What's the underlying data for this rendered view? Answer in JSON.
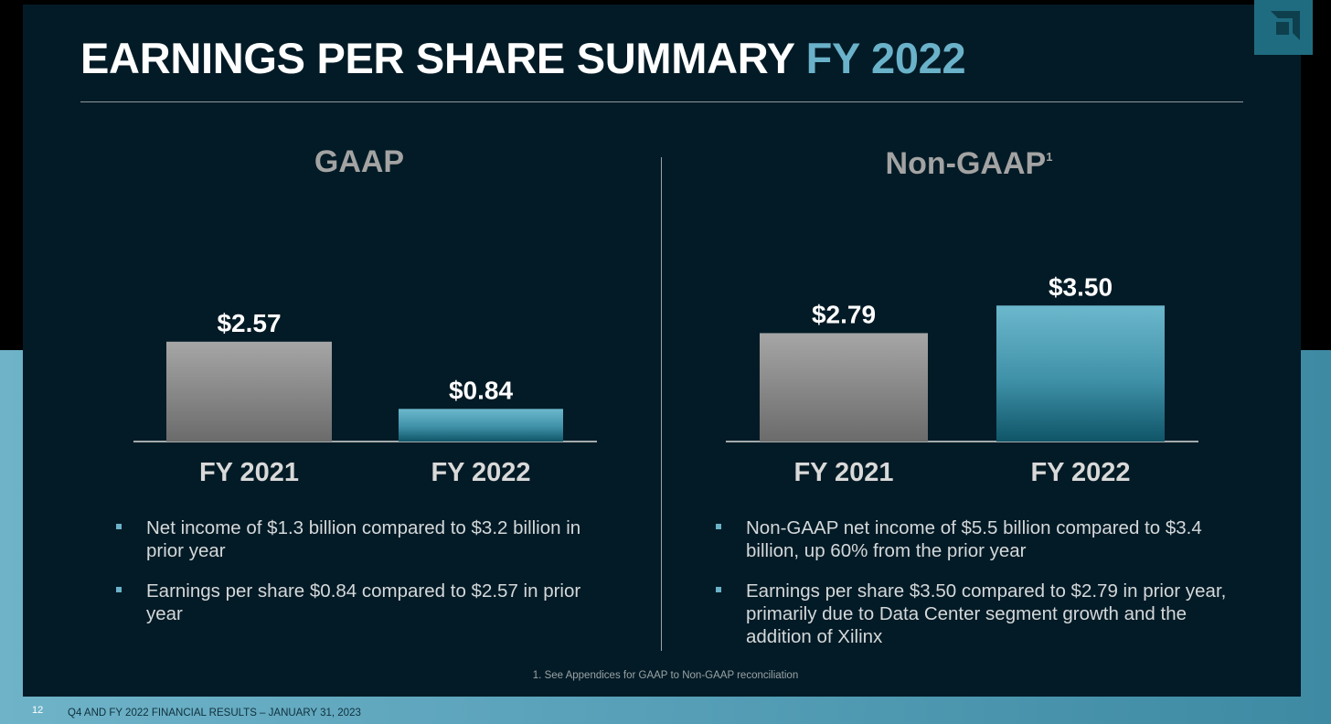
{
  "title": {
    "main": "EARNINGS PER SHARE SUMMARY",
    "accent": "FY 2022"
  },
  "colors": {
    "slide_bg": "#031b26",
    "accent": "#6ab2c9",
    "bar_grey": "#9a9a9a",
    "bar_teal": "#5aa9c0"
  },
  "panels": [
    {
      "title": "GAAP",
      "superscript": "",
      "bullets": [
        "Net income of $1.3 billion compared to $3.2 billion in prior year",
        "Earnings per share $0.84 compared to $2.57 in prior year"
      ]
    },
    {
      "title": "Non-GAAP",
      "superscript": "1",
      "bullets": [
        "Non-GAAP net income of $5.5 billion compared to $3.4 billion, up 60% from the prior year",
        "Earnings per share $3.50 compared to $2.79 in prior year, primarily due to Data Center segment growth and the addition of Xilinx"
      ]
    }
  ],
  "chart_data": [
    {
      "type": "bar",
      "title": "GAAP",
      "categories": [
        "FY 2021",
        "FY 2022"
      ],
      "values": [
        2.57,
        0.84
      ],
      "data_labels": [
        "$2.57",
        "$0.84"
      ],
      "bar_colors": [
        "grey",
        "teal"
      ]
    },
    {
      "type": "bar",
      "title": "Non-GAAP",
      "categories": [
        "FY 2021",
        "FY 2022"
      ],
      "values": [
        2.79,
        3.5
      ],
      "data_labels": [
        "$2.79",
        "$3.50"
      ],
      "bar_colors": [
        "grey",
        "teal"
      ]
    }
  ],
  "footnote": "1. See Appendices for GAAP to Non-GAAP reconciliation",
  "footer": {
    "page_number": "12",
    "text": "Q4 AND FY 2022 FINANCIAL RESULTS – JANUARY 31, 2023"
  }
}
